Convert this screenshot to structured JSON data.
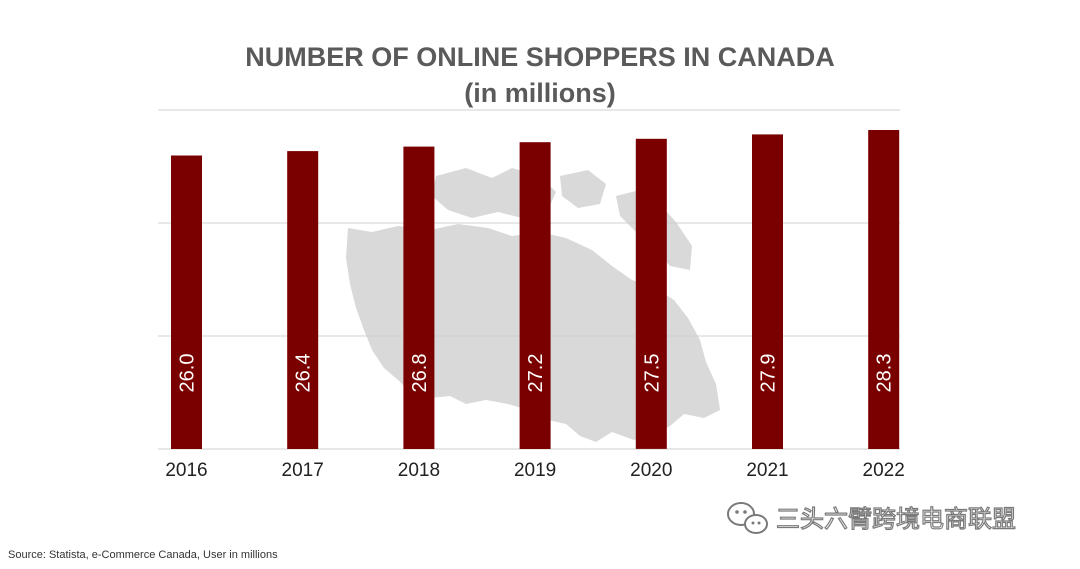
{
  "chart_data": {
    "type": "bar",
    "title": "NUMBER OF ONLINE SHOPPERS IN CANADA",
    "subtitle": "(in millions)",
    "categories": [
      "2016",
      "2017",
      "2018",
      "2019",
      "2020",
      "2021",
      "2022"
    ],
    "values": [
      26.0,
      26.4,
      26.8,
      27.2,
      27.5,
      27.9,
      28.3
    ],
    "value_labels": [
      "26.0",
      "26.4",
      "26.8",
      "27.2",
      "27.5",
      "27.9",
      "28.3"
    ],
    "bar_color": "#7a0000",
    "grid": true,
    "legend": "none",
    "background_image": "canada-map"
  },
  "source": "Source: Statista, e-Commerce Canada, User in millions",
  "watermark": {
    "icon": "wechat-icon",
    "text": "三头六臂跨境电商联盟"
  },
  "colors": {
    "title": "#5a5a5a",
    "map": "#d9d9d9",
    "grid": "#d0d0d0"
  }
}
